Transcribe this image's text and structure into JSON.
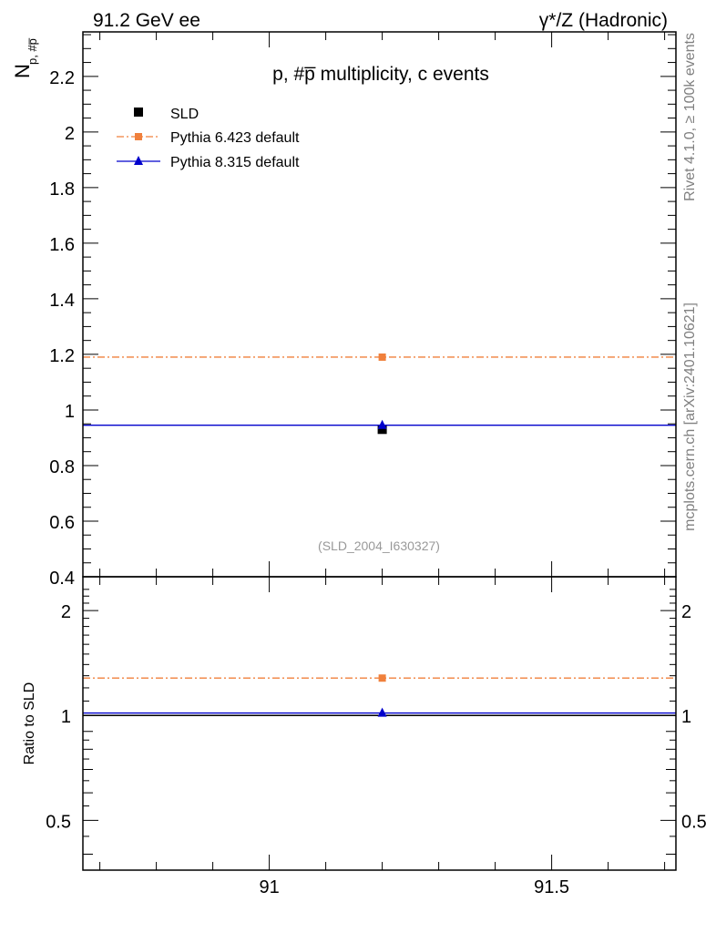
{
  "header": {
    "left_label": "91.2 GeV ee",
    "right_label": "γ*/Z (Hadronic)"
  },
  "side_labels": {
    "rivet": "Rivet 4.1.0, ≥ 100k events",
    "mcplots": "mcplots.cern.ch [arXiv:2401.10621]"
  },
  "chart_data": [
    {
      "type": "scatter",
      "panel": "main",
      "title": "p, #p̅ multiplicity, c events",
      "ylabel_main": "N",
      "ylabel_sub": "p, #p̅",
      "xlim": [
        90.67,
        91.72
      ],
      "ylim": [
        0.4,
        2.36
      ],
      "y_ticks": [
        0.4,
        0.6,
        0.8,
        1.0,
        1.2,
        1.4,
        1.6,
        1.8,
        2.0,
        2.2
      ],
      "y_tick_labels": [
        "0.4",
        "0.6",
        "0.8",
        "1",
        "1.2",
        "1.4",
        "1.6",
        "1.8",
        "2",
        "2.2"
      ],
      "reference": "(SLD_2004_I630327)",
      "legend_position": "top-left",
      "series": [
        {
          "name": "SLD",
          "color": "#000000",
          "marker": "square",
          "line": "none",
          "x": [
            91.2
          ],
          "y": [
            0.93
          ]
        },
        {
          "name": "Pythia 6.423 default",
          "color": "#f0803c",
          "marker": "square",
          "line": "dashdot",
          "x": [
            91.2
          ],
          "y": [
            1.19
          ],
          "x_range": [
            90.67,
            91.72
          ]
        },
        {
          "name": "Pythia 8.315 default",
          "color": "#0000cc",
          "marker": "triangle",
          "line": "solid",
          "x": [
            91.2
          ],
          "y": [
            0.945
          ],
          "x_range": [
            90.67,
            91.72
          ]
        }
      ]
    },
    {
      "type": "scatter",
      "panel": "ratio",
      "ylabel": "Ratio to SLD",
      "yscale": "log",
      "xlim": [
        90.67,
        91.72
      ],
      "ylim": [
        0.36,
        2.5
      ],
      "y_ticks": [
        0.5,
        1,
        2
      ],
      "y_tick_labels": [
        "0.5",
        "1",
        "2"
      ],
      "x_ticks": [
        91,
        91.5
      ],
      "x_tick_labels": [
        "91",
        "91.5"
      ],
      "series": [
        {
          "name": "SLD",
          "color": "#000000",
          "line": "solid",
          "x": [
            91.2
          ],
          "y": [
            1.0
          ]
        },
        {
          "name": "Pythia 6.423 default",
          "color": "#f0803c",
          "marker": "square",
          "line": "dashdot",
          "x": [
            91.2
          ],
          "y": [
            1.28
          ]
        },
        {
          "name": "Pythia 8.315 default",
          "color": "#0000cc",
          "marker": "triangle",
          "line": "solid",
          "x": [
            91.2
          ],
          "y": [
            1.016
          ]
        }
      ]
    }
  ]
}
